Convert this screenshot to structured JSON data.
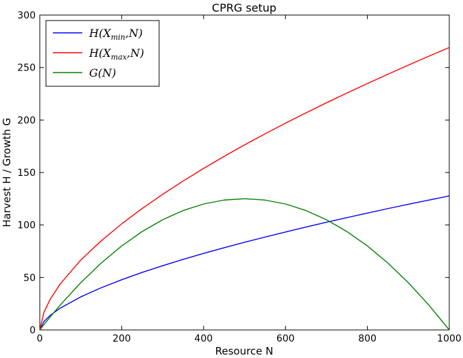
{
  "chart_data": {
    "type": "line",
    "title": "CPRG setup",
    "xlabel": "Resource N",
    "ylabel": "Harvest H / Growth G",
    "xlim": [
      0,
      1000
    ],
    "ylim": [
      0,
      300
    ],
    "xticks": [
      "0",
      "200",
      "400",
      "600",
      "800",
      "1000"
    ],
    "yticks": [
      "0",
      "50",
      "100",
      "150",
      "200",
      "250",
      "300"
    ],
    "grid": false,
    "legend_placement": "top-left",
    "x": [
      0,
      10,
      25,
      50,
      100,
      150,
      200,
      250,
      300,
      350,
      400,
      450,
      500,
      550,
      600,
      650,
      700,
      750,
      800,
      850,
      900,
      950,
      1000
    ],
    "series": [
      {
        "name": "H(X_min,N)",
        "color": "#0000ff",
        "values": [
          0,
          7.9,
          13.7,
          20.8,
          31.5,
          40.2,
          47.8,
          54.8,
          61.2,
          67.2,
          72.9,
          78.3,
          83.5,
          88.5,
          93.3,
          98.0,
          102.6,
          107.0,
          111.3,
          115.6,
          119.7,
          123.7,
          127.7
        ]
      },
      {
        "name": "H(X_max,N)",
        "color": "#ff0000",
        "values": [
          0,
          16.7,
          29.0,
          43.9,
          66.6,
          84.9,
          101.1,
          115.7,
          129.2,
          141.9,
          153.9,
          165.3,
          176.3,
          186.8,
          197.0,
          206.8,
          216.4,
          225.7,
          234.8,
          243.6,
          252.3,
          260.8,
          269.1
        ]
      },
      {
        "name": "G(N)",
        "color": "#008000",
        "values": [
          0,
          4.95,
          12.19,
          23.75,
          45.0,
          63.75,
          80.0,
          93.75,
          105.0,
          113.75,
          120.0,
          123.75,
          125.0,
          123.75,
          120.0,
          113.75,
          105.0,
          93.75,
          80.0,
          63.75,
          45.0,
          23.75,
          0
        ]
      }
    ]
  },
  "legend": {
    "entries": [
      "H(X_min,N)",
      "H(X_max,N)",
      "G(N)"
    ]
  }
}
